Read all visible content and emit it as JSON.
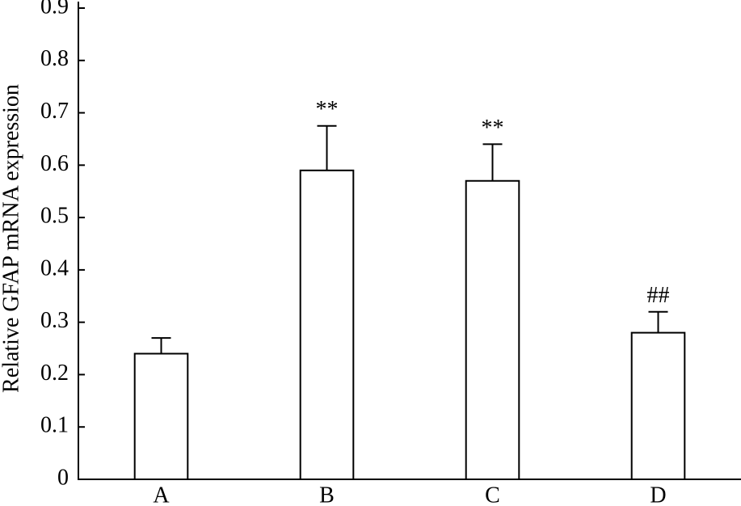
{
  "chart_data": {
    "type": "bar",
    "y_label": "Relative GFAP mRNA expression",
    "categories": [
      "A",
      "B",
      "C",
      "D"
    ],
    "values": [
      0.24,
      0.59,
      0.57,
      0.28
    ],
    "errors": [
      0.03,
      0.085,
      0.07,
      0.04
    ],
    "annotations": [
      null,
      "**",
      "**",
      "##"
    ],
    "color": "#ffffff",
    "ylim": [
      0,
      0.9
    ],
    "yticks": [
      0,
      0.1,
      0.2,
      0.3,
      0.4,
      0.5,
      0.6,
      0.7,
      0.8,
      0.9
    ],
    "grid": false
  }
}
